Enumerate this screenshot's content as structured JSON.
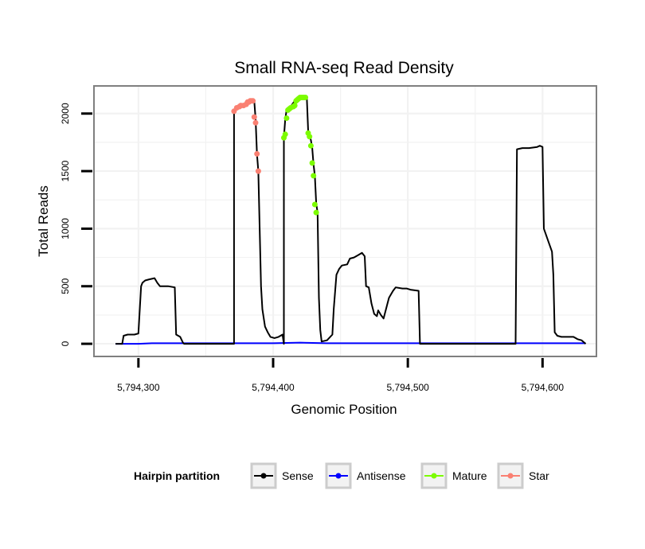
{
  "chart_data": {
    "type": "line",
    "title": "Small RNA-seq Read Density",
    "xlabel": "Genomic Position",
    "ylabel": "Total Reads",
    "xlim": [
      5794267,
      5794640
    ],
    "ylim": [
      -110,
      2240
    ],
    "x_ticks": [
      5794300,
      5794400,
      5794500,
      5794600
    ],
    "x_tick_labels": [
      "5,794,300",
      "5,794,400",
      "5,794,500",
      "5,794,600"
    ],
    "y_ticks": [
      0,
      500,
      1000,
      1500,
      2000
    ],
    "y_tick_labels": [
      "0",
      "500",
      "1000",
      "1500",
      "2000"
    ],
    "grid": true,
    "legend": {
      "title": "Hairpin partition",
      "position": "bottom",
      "entries": [
        "Sense",
        "Antisense",
        "Mature",
        "Star"
      ]
    },
    "series": [
      {
        "name": "Sense",
        "color": "#000000",
        "marker": "line",
        "points": [
          [
            5794283,
            0
          ],
          [
            5794288,
            0
          ],
          [
            5794289,
            70
          ],
          [
            5794292,
            80
          ],
          [
            5794297,
            80
          ],
          [
            5794300,
            90
          ],
          [
            5794302,
            500
          ],
          [
            5794303,
            530
          ],
          [
            5794305,
            550
          ],
          [
            5794308,
            560
          ],
          [
            5794312,
            570
          ],
          [
            5794314,
            530
          ],
          [
            5794316,
            500
          ],
          [
            5794322,
            500
          ],
          [
            5794327,
            490
          ],
          [
            5794328,
            80
          ],
          [
            5794331,
            60
          ],
          [
            5794333,
            10
          ],
          [
            5794334,
            0
          ],
          [
            5794371,
            0
          ],
          [
            5794371,
            2020
          ],
          [
            5794374,
            2050
          ],
          [
            5794377,
            2070
          ],
          [
            5794380,
            2080
          ],
          [
            5794383,
            2100
          ],
          [
            5794386,
            2110
          ],
          [
            5794387,
            1950
          ],
          [
            5794388,
            1650
          ],
          [
            5794389,
            1500
          ],
          [
            5794390,
            1000
          ],
          [
            5794391,
            500
          ],
          [
            5794392,
            300
          ],
          [
            5794394,
            150
          ],
          [
            5794396,
            100
          ],
          [
            5794398,
            60
          ],
          [
            5794401,
            50
          ],
          [
            5794404,
            60
          ],
          [
            5794407,
            80
          ],
          [
            5794408,
            0
          ],
          [
            5794408,
            1790
          ],
          [
            5794409,
            1950
          ],
          [
            5794410,
            2030
          ],
          [
            5794413,
            2060
          ],
          [
            5794416,
            2110
          ],
          [
            5794420,
            2130
          ],
          [
            5794425,
            2140
          ],
          [
            5794426,
            1850
          ],
          [
            5794428,
            1770
          ],
          [
            5794429,
            1700
          ],
          [
            5794430,
            1560
          ],
          [
            5794431,
            1460
          ],
          [
            5794432,
            1220
          ],
          [
            5794433,
            1140
          ],
          [
            5794434,
            400
          ],
          [
            5794435,
            120
          ],
          [
            5794436,
            20
          ],
          [
            5794440,
            30
          ],
          [
            5794444,
            80
          ],
          [
            5794445,
            300
          ],
          [
            5794447,
            600
          ],
          [
            5794449,
            650
          ],
          [
            5794451,
            680
          ],
          [
            5794455,
            690
          ],
          [
            5794457,
            740
          ],
          [
            5794460,
            750
          ],
          [
            5794463,
            770
          ],
          [
            5794466,
            790
          ],
          [
            5794468,
            760
          ],
          [
            5794469,
            500
          ],
          [
            5794471,
            490
          ],
          [
            5794473,
            350
          ],
          [
            5794475,
            260
          ],
          [
            5794477,
            240
          ],
          [
            5794478,
            290
          ],
          [
            5794480,
            250
          ],
          [
            5794482,
            220
          ],
          [
            5794484,
            310
          ],
          [
            5794486,
            400
          ],
          [
            5794489,
            460
          ],
          [
            5794491,
            490
          ],
          [
            5794496,
            480
          ],
          [
            5794499,
            480
          ],
          [
            5794502,
            470
          ],
          [
            5794508,
            460
          ],
          [
            5794509,
            0
          ],
          [
            5794580,
            0
          ],
          [
            5794581,
            1690
          ],
          [
            5794585,
            1700
          ],
          [
            5794590,
            1700
          ],
          [
            5794596,
            1710
          ],
          [
            5794598,
            1720
          ],
          [
            5794600,
            1710
          ],
          [
            5794601,
            1000
          ],
          [
            5794604,
            900
          ],
          [
            5794607,
            800
          ],
          [
            5794608,
            600
          ],
          [
            5794609,
            100
          ],
          [
            5794611,
            70
          ],
          [
            5794614,
            60
          ],
          [
            5794623,
            60
          ],
          [
            5794626,
            40
          ],
          [
            5794629,
            30
          ],
          [
            5794632,
            0
          ]
        ]
      },
      {
        "name": "Antisense",
        "color": "#0000ff",
        "marker": "line",
        "points": [
          [
            5794283,
            0
          ],
          [
            5794300,
            0
          ],
          [
            5794310,
            5
          ],
          [
            5794330,
            5
          ],
          [
            5794372,
            5
          ],
          [
            5794400,
            5
          ],
          [
            5794420,
            10
          ],
          [
            5794440,
            5
          ],
          [
            5794500,
            5
          ],
          [
            5794600,
            5
          ],
          [
            5794632,
            5
          ]
        ]
      },
      {
        "name": "Mature",
        "color": "#7cfc00",
        "marker": "point",
        "points": [
          [
            5794408,
            1790
          ],
          [
            5794409,
            1820
          ],
          [
            5794410,
            1960
          ],
          [
            5794411,
            2030
          ],
          [
            5794412,
            2040
          ],
          [
            5794413,
            2050
          ],
          [
            5794415,
            2060
          ],
          [
            5794416,
            2070
          ],
          [
            5794417,
            2110
          ],
          [
            5794418,
            2120
          ],
          [
            5794419,
            2130
          ],
          [
            5794420,
            2140
          ],
          [
            5794421,
            2140
          ],
          [
            5794422,
            2140
          ],
          [
            5794423,
            2140
          ],
          [
            5794424,
            2140
          ],
          [
            5794426,
            1830
          ],
          [
            5794427,
            1800
          ],
          [
            5794428,
            1720
          ],
          [
            5794429,
            1570
          ],
          [
            5794430,
            1460
          ],
          [
            5794431,
            1210
          ],
          [
            5794432,
            1140
          ]
        ]
      },
      {
        "name": "Star",
        "color": "#fa8072",
        "marker": "point",
        "points": [
          [
            5794371,
            2020
          ],
          [
            5794373,
            2050
          ],
          [
            5794375,
            2060
          ],
          [
            5794376,
            2070
          ],
          [
            5794378,
            2070
          ],
          [
            5794380,
            2080
          ],
          [
            5794381,
            2100
          ],
          [
            5794382,
            2100
          ],
          [
            5794383,
            2110
          ],
          [
            5794384,
            2110
          ],
          [
            5794385,
            2110
          ],
          [
            5794386,
            1970
          ],
          [
            5794387,
            1920
          ],
          [
            5794388,
            1650
          ],
          [
            5794389,
            1500
          ]
        ]
      }
    ]
  }
}
